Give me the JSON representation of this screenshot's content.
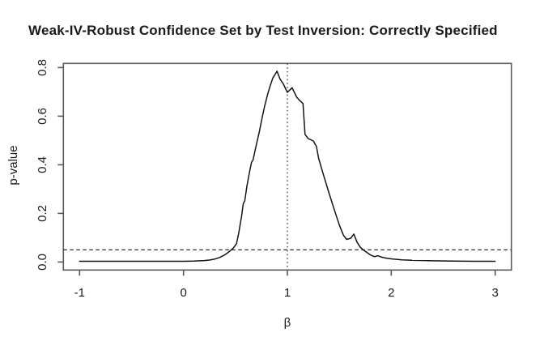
{
  "chart_data": {
    "type": "line",
    "title": "Weak-IV-Robust Confidence Set by Test Inversion: Correctly Specified",
    "xlabel": "β",
    "ylabel": "p-value",
    "xlim": [
      -1.156,
      3.156
    ],
    "ylim": [
      -0.033,
      0.817
    ],
    "grid": false,
    "legend_position": "none",
    "xticks": {
      "values": [
        -1,
        0,
        1,
        2,
        3
      ],
      "labels": [
        "-1",
        "0",
        "1",
        "2",
        "3"
      ]
    },
    "yticks": {
      "values": [
        0.0,
        0.2,
        0.4,
        0.6,
        0.8
      ],
      "labels": [
        "0.0",
        "0.2",
        "0.4",
        "0.6",
        "0.8"
      ]
    },
    "series": [
      {
        "name": "p-value curve",
        "style": "solid",
        "x": [
          -1.0,
          -0.75,
          -0.5,
          -0.25,
          0.0,
          0.1,
          0.2,
          0.25,
          0.3,
          0.35,
          0.4,
          0.45,
          0.48,
          0.51,
          0.53,
          0.56,
          0.575,
          0.59,
          0.61,
          0.64,
          0.655,
          0.67,
          0.7,
          0.73,
          0.755,
          0.78,
          0.81,
          0.835,
          0.86,
          0.9,
          0.93,
          0.96,
          1.0,
          1.045,
          1.09,
          1.12,
          1.15,
          1.17,
          1.2,
          1.25,
          1.28,
          1.3,
          1.35,
          1.4,
          1.45,
          1.5,
          1.54,
          1.57,
          1.61,
          1.64,
          1.67,
          1.7,
          1.73,
          1.77,
          1.8,
          1.84,
          1.87,
          1.9,
          1.95,
          2.0,
          2.1,
          2.2,
          2.4,
          2.6,
          2.8,
          3.0
        ],
        "y": [
          0.003,
          0.003,
          0.003,
          0.003,
          0.003,
          0.004,
          0.006,
          0.008,
          0.012,
          0.019,
          0.03,
          0.046,
          0.058,
          0.075,
          0.115,
          0.19,
          0.24,
          0.252,
          0.31,
          0.38,
          0.41,
          0.42,
          0.48,
          0.535,
          0.59,
          0.64,
          0.69,
          0.725,
          0.757,
          0.785,
          0.752,
          0.733,
          0.698,
          0.717,
          0.678,
          0.664,
          0.652,
          0.525,
          0.508,
          0.498,
          0.475,
          0.428,
          0.355,
          0.285,
          0.217,
          0.152,
          0.11,
          0.093,
          0.098,
          0.115,
          0.082,
          0.062,
          0.05,
          0.038,
          0.029,
          0.022,
          0.026,
          0.021,
          0.016,
          0.013,
          0.009,
          0.007,
          0.005,
          0.004,
          0.003,
          0.003
        ]
      }
    ],
    "reference_lines": [
      {
        "axis": "horizontal",
        "value": 0.05,
        "style": "dashed"
      },
      {
        "axis": "vertical",
        "value": 1.0,
        "style": "dotted"
      }
    ],
    "peak": {
      "x": 0.9,
      "y": 0.785
    },
    "colors": {
      "curve": "#141414",
      "reference": "#2a2a2a",
      "axis": "#595959",
      "text": "#1a1a1a",
      "background": "#ffffff"
    }
  }
}
